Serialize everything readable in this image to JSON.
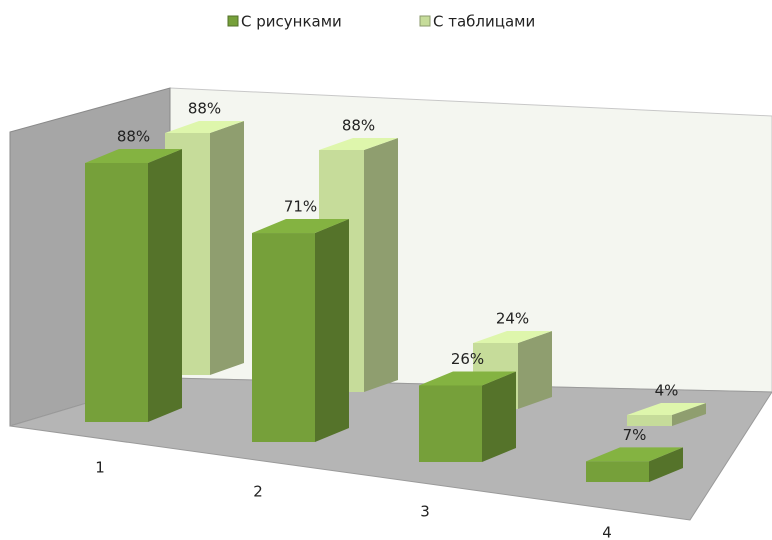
{
  "chart_data": {
    "type": "bar3d",
    "categories": [
      "1",
      "2",
      "3",
      "4"
    ],
    "series": [
      {
        "name": "С рисунками",
        "color": "#76a03a",
        "values": [
          88,
          71,
          26,
          7
        ],
        "value_labels": [
          "88%",
          "71%",
          "26%",
          "7%"
        ]
      },
      {
        "name": "С таблицами",
        "color": "#c6dc9a",
        "values": [
          88,
          88,
          24,
          4
        ],
        "value_labels": [
          "88%",
          "88%",
          "24%",
          "4%"
        ]
      }
    ],
    "legend": "top"
  }
}
